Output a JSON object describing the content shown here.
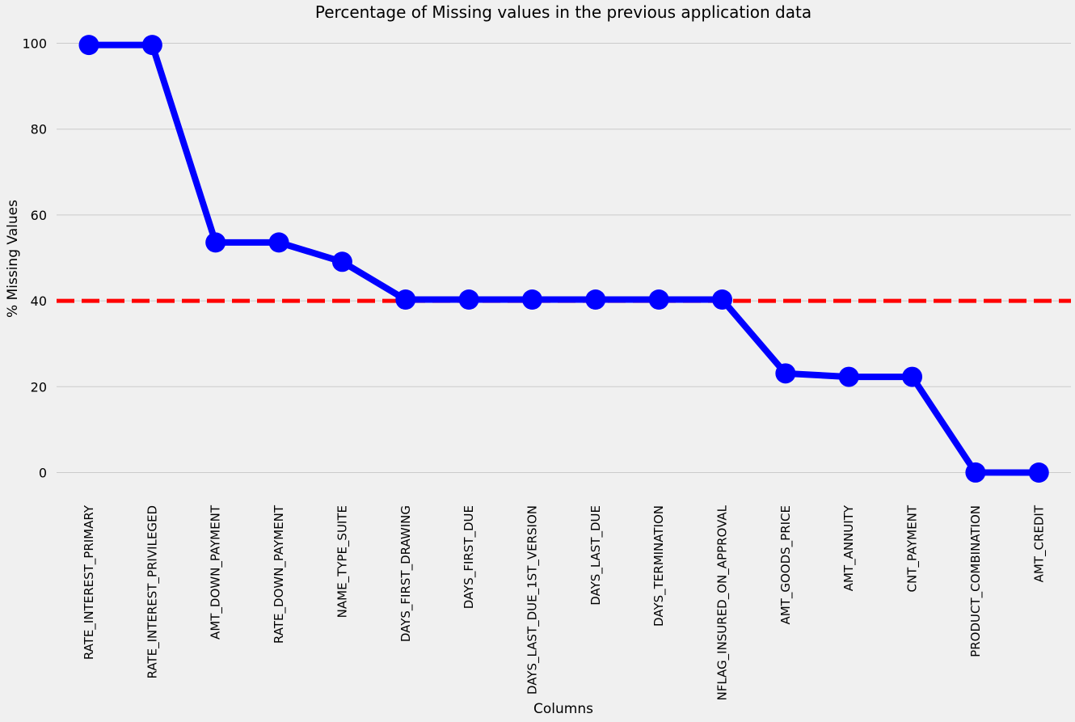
{
  "chart_data": {
    "type": "line",
    "title": "Percentage of Missing values in the previous application data",
    "xlabel": "Columns",
    "ylabel": "% Missing Values",
    "categories": [
      "RATE_INTEREST_PRIMARY",
      "RATE_INTEREST_PRIVILEGED",
      "AMT_DOWN_PAYMENT",
      "RATE_DOWN_PAYMENT",
      "NAME_TYPE_SUITE",
      "DAYS_FIRST_DRAWING",
      "DAYS_FIRST_DUE",
      "DAYS_LAST_DUE_1ST_VERSION",
      "DAYS_LAST_DUE",
      "DAYS_TERMINATION",
      "NFLAG_INSURED_ON_APPROVAL",
      "AMT_GOODS_PRICE",
      "AMT_ANNUITY",
      "CNT_PAYMENT",
      "PRODUCT_COMBINATION",
      "AMT_CREDIT"
    ],
    "values": [
      99.6,
      99.6,
      53.6,
      53.6,
      49.1,
      40.3,
      40.3,
      40.3,
      40.3,
      40.3,
      40.3,
      23.1,
      22.3,
      22.3,
      0.02,
      0.0
    ],
    "ylim": [
      -7.5,
      103
    ],
    "yticks": [
      "0",
      "20",
      "40",
      "60",
      "80",
      "100"
    ],
    "grid": "horizontal",
    "threshold": 40,
    "colors": {
      "line": "#0000ff",
      "marker": "#0000ff",
      "threshold": "#ff0000",
      "grid": "#cbcbcb",
      "background": "#f0f0f0"
    }
  }
}
